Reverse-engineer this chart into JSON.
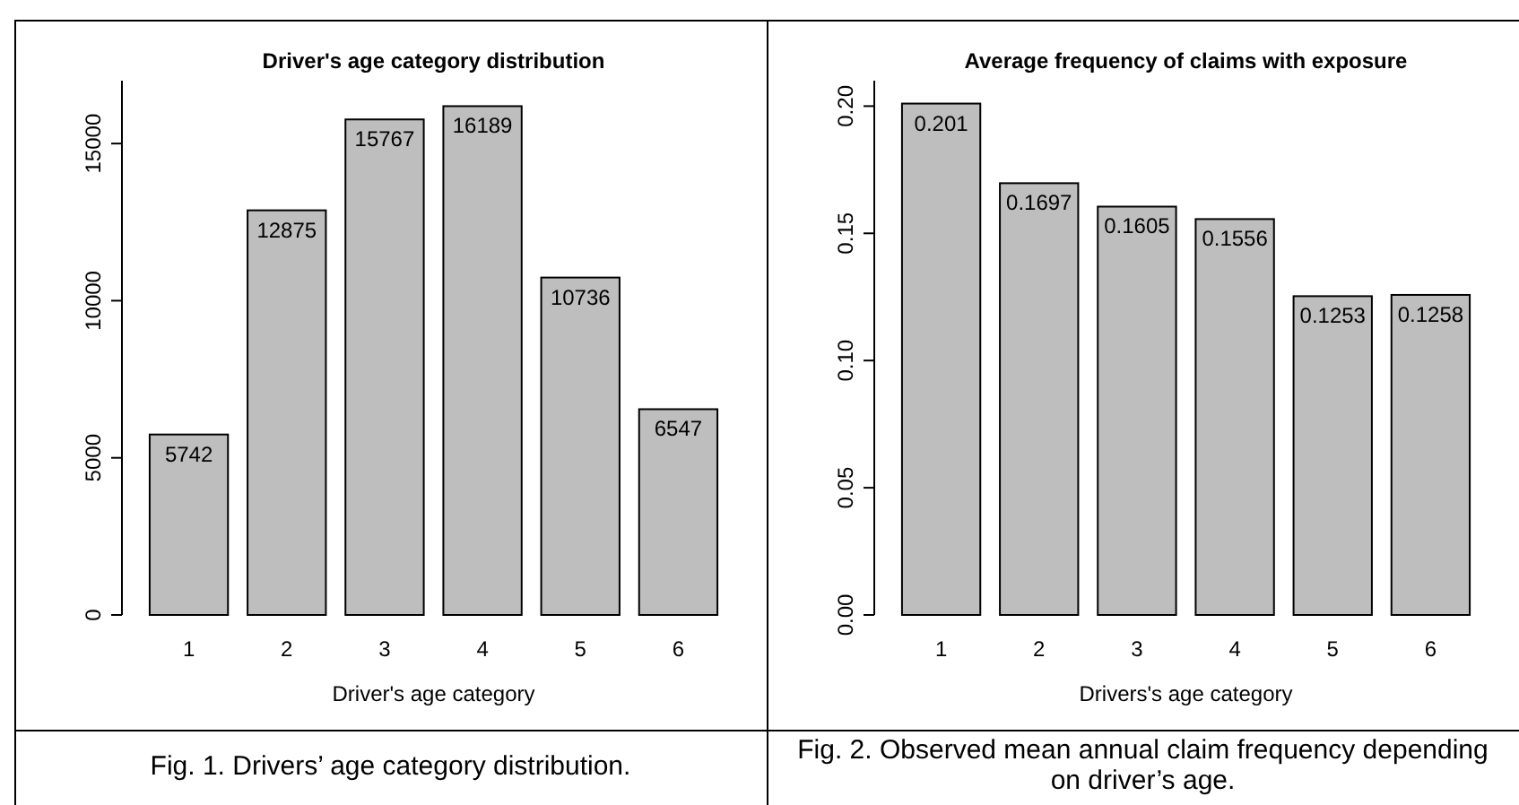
{
  "chart_data": [
    {
      "type": "bar",
      "title": "Driver's age category distribution",
      "xlabel": "Driver's age category",
      "categories": [
        "1",
        "2",
        "3",
        "4",
        "5",
        "6"
      ],
      "values": [
        5742,
        12875,
        15767,
        16189,
        10736,
        6547
      ],
      "color": "#bebebe",
      "ylim": [
        0,
        17000
      ],
      "yticks": [
        0,
        5000,
        10000,
        15000
      ],
      "data_labels": true,
      "grid": false,
      "annotations": [
        "Fig. 1. Drivers’ age category distribution."
      ]
    },
    {
      "type": "bar",
      "title": "Average frequency of claims with exposure",
      "xlabel": "Drivers's age category",
      "categories": [
        "1",
        "2",
        "3",
        "4",
        "5",
        "6"
      ],
      "values": [
        0.201,
        0.1697,
        0.1605,
        0.1556,
        0.1253,
        0.1258
      ],
      "color": "#bebebe",
      "ylim": [
        0,
        0.21
      ],
      "yticks": [
        {
          "value": 0,
          "label": "0.00"
        },
        0.05,
        {
          "value": 0.1,
          "label": "0.10"
        },
        0.15,
        {
          "value": 0.2,
          "label": "0.20"
        }
      ],
      "data_labels": true,
      "grid": false,
      "annotations": [
        "Fig. 2. Observed mean annual claim frequency depending on driver’s age."
      ]
    }
  ]
}
